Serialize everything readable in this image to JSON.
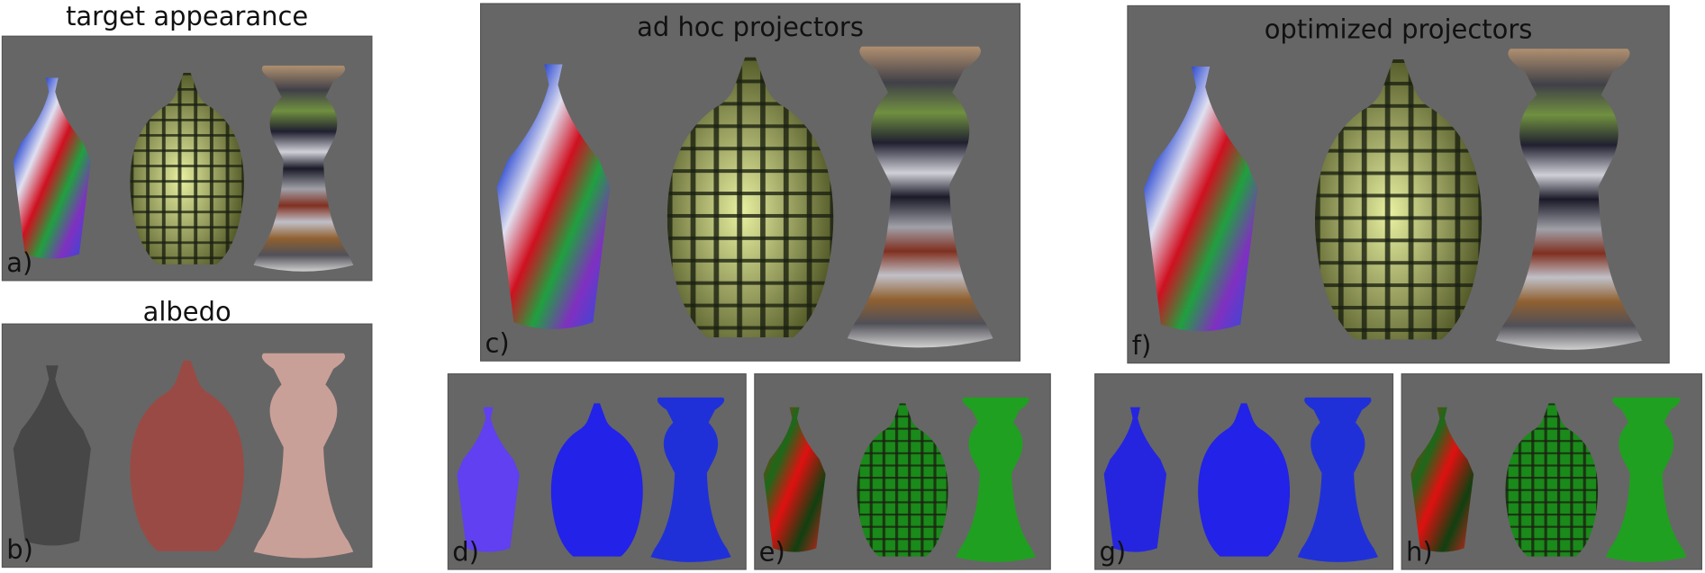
{
  "panels": [
    {
      "label": "a)",
      "title": "target appearance"
    },
    {
      "label": "b)",
      "title": "albedo"
    },
    {
      "label": "c)",
      "title": "ad hoc projectors"
    },
    {
      "label": "d)"
    },
    {
      "label": "e)"
    },
    {
      "label": "f)",
      "title": "optimized projectors"
    },
    {
      "label": "g)"
    },
    {
      "label": "h)"
    }
  ]
}
